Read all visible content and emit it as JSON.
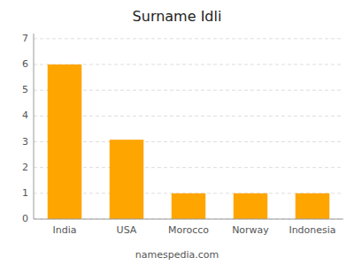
{
  "chart_data": {
    "type": "bar",
    "title": "Surname Idli",
    "categories": [
      "India",
      "USA",
      "Morocco",
      "Norway",
      "Indonesia"
    ],
    "values": [
      6,
      3.08,
      1,
      1,
      1
    ],
    "color": "#FFA500",
    "ylim": [
      0,
      7.2
    ],
    "yticks": [
      0,
      1,
      2,
      3,
      4,
      5,
      6,
      7
    ],
    "grid": true,
    "annotations": [
      "namespedia.com"
    ]
  }
}
